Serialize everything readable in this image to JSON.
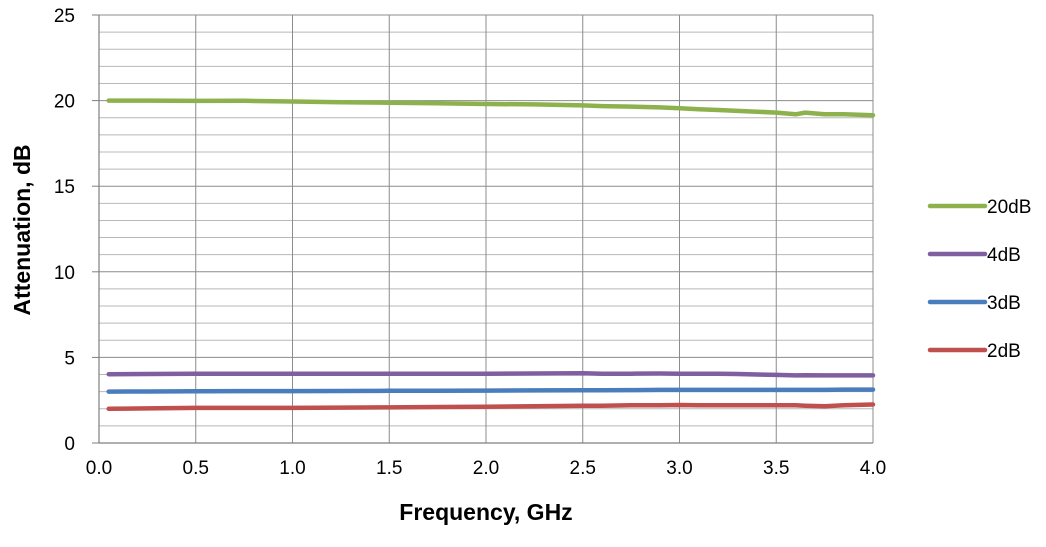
{
  "chart_data": {
    "type": "line",
    "title": "",
    "xlabel": "Frequency, GHz",
    "ylabel": "Attenuation, dB",
    "xlim": [
      0.0,
      4.0
    ],
    "ylim": [
      0,
      25
    ],
    "x_ticks": [
      "0.0",
      "0.5",
      "1.0",
      "1.5",
      "2.0",
      "2.5",
      "3.0",
      "3.5",
      "4.0"
    ],
    "y_ticks": [
      "0",
      "5",
      "10",
      "15",
      "20",
      "25"
    ],
    "y_minor_step": 1,
    "grid": true,
    "legend_position": "right",
    "x": [
      0.05,
      0.25,
      0.5,
      0.75,
      1.0,
      1.25,
      1.5,
      1.75,
      2.0,
      2.25,
      2.5,
      2.6,
      2.75,
      2.9,
      3.0,
      3.1,
      3.2,
      3.3,
      3.4,
      3.5,
      3.6,
      3.65,
      3.75,
      3.85,
      4.0
    ],
    "series": [
      {
        "name": "20dB",
        "color": "#8db24d",
        "values": [
          20.0,
          20.0,
          19.98,
          19.99,
          19.95,
          19.9,
          19.88,
          19.85,
          19.8,
          19.78,
          19.72,
          19.68,
          19.65,
          19.6,
          19.55,
          19.5,
          19.45,
          19.4,
          19.35,
          19.3,
          19.2,
          19.3,
          19.2,
          19.2,
          19.15
        ]
      },
      {
        "name": "4dB",
        "color": "#7f5fa0",
        "values": [
          4.02,
          4.03,
          4.04,
          4.05,
          4.05,
          4.05,
          4.05,
          4.05,
          4.05,
          4.06,
          4.08,
          4.05,
          4.05,
          4.06,
          4.05,
          4.04,
          4.05,
          4.03,
          4.0,
          3.98,
          3.95,
          3.96,
          3.95,
          3.95,
          3.95
        ]
      },
      {
        "name": "3dB",
        "color": "#4a7dbd",
        "values": [
          3.0,
          3.01,
          3.02,
          3.03,
          3.03,
          3.04,
          3.05,
          3.05,
          3.06,
          3.07,
          3.08,
          3.08,
          3.09,
          3.1,
          3.1,
          3.1,
          3.1,
          3.1,
          3.1,
          3.1,
          3.1,
          3.1,
          3.1,
          3.12,
          3.12
        ]
      },
      {
        "name": "2dB",
        "color": "#c0504d",
        "values": [
          2.0,
          2.02,
          2.05,
          2.05,
          2.05,
          2.07,
          2.08,
          2.1,
          2.12,
          2.15,
          2.17,
          2.18,
          2.2,
          2.2,
          2.22,
          2.2,
          2.2,
          2.2,
          2.2,
          2.2,
          2.2,
          2.18,
          2.15,
          2.2,
          2.25
        ]
      }
    ]
  }
}
